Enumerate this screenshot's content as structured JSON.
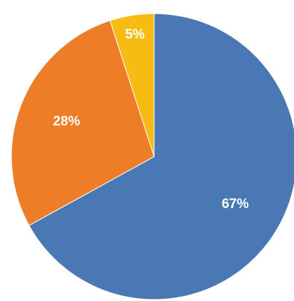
{
  "chart_data": {
    "type": "pie",
    "title": "",
    "categories": [
      "",
      "",
      ""
    ],
    "values": [
      67,
      28,
      5
    ],
    "labels": [
      "67%",
      "28%",
      "5%"
    ],
    "colors": [
      "#4A78B5",
      "#ED7D27",
      "#F7BC14"
    ],
    "start_angle_deg": 0,
    "direction": "clockwise",
    "legend": "none"
  }
}
